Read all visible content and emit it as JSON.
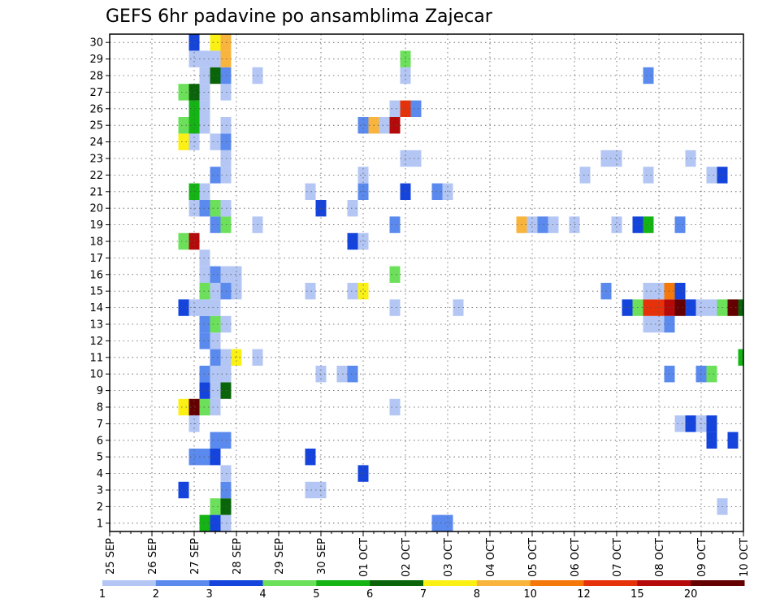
{
  "chart_data": {
    "type": "heatmap",
    "title": "GEFS 6hr padavine po ansamblima Zajecar",
    "xlabel": "",
    "ylabel": "",
    "x_tick_labels": [
      "25 SEP",
      "26 SEP",
      "27 SEP",
      "28 SEP",
      "29 SEP",
      "30 SEP",
      "01 OCT",
      "02 OCT",
      "03 OCT",
      "04 OCT",
      "05 OCT",
      "06 OCT",
      "07 OCT",
      "08 OCT",
      "09 OCT",
      "10 OCT"
    ],
    "y_tick_labels": [
      "1",
      "2",
      "3",
      "4",
      "5",
      "6",
      "7",
      "8",
      "9",
      "10",
      "11",
      "12",
      "13",
      "14",
      "15",
      "16",
      "17",
      "18",
      "19",
      "20",
      "21",
      "22",
      "23",
      "24",
      "25",
      "26",
      "27",
      "28",
      "29",
      "30"
    ],
    "grid": true,
    "legend": "colorbar at bottom",
    "colorbar_labels": [
      "1",
      "2",
      "3",
      "4",
      "5",
      "6",
      "7",
      "8",
      "10",
      "12",
      "15",
      "20"
    ],
    "colorbar_colors": [
      "#b4c6f4",
      "#5b8aee",
      "#1444dc",
      "#6ce05a",
      "#14b414",
      "#0a640a",
      "#faf014",
      "#f8b43c",
      "#f5780a",
      "#e6320a",
      "#b40a0a",
      "#640000"
    ],
    "time_steps": 61,
    "members": 30,
    "cells": [
      [
        1,
        9,
        4
      ],
      [
        1,
        10,
        2
      ],
      [
        1,
        11,
        0
      ],
      [
        1,
        31,
        1
      ],
      [
        1,
        32,
        1
      ],
      [
        2,
        10,
        3
      ],
      [
        2,
        11,
        5
      ],
      [
        2,
        58,
        0
      ],
      [
        3,
        7,
        2
      ],
      [
        3,
        11,
        1
      ],
      [
        3,
        19,
        0
      ],
      [
        3,
        20,
        0
      ],
      [
        4,
        11,
        0
      ],
      [
        4,
        24,
        2
      ],
      [
        5,
        8,
        1
      ],
      [
        5,
        9,
        1
      ],
      [
        5,
        10,
        2
      ],
      [
        5,
        19,
        2
      ],
      [
        6,
        10,
        1
      ],
      [
        6,
        11,
        1
      ],
      [
        6,
        57,
        2
      ],
      [
        6,
        59,
        2
      ],
      [
        7,
        8,
        0
      ],
      [
        7,
        54,
        0
      ],
      [
        7,
        55,
        2
      ],
      [
        7,
        56,
        0
      ],
      [
        7,
        57,
        2
      ],
      [
        8,
        7,
        6
      ],
      [
        8,
        8,
        11
      ],
      [
        8,
        9,
        3
      ],
      [
        8,
        10,
        0
      ],
      [
        8,
        27,
        0
      ],
      [
        9,
        9,
        2
      ],
      [
        9,
        10,
        0
      ],
      [
        9,
        11,
        5
      ],
      [
        10,
        9,
        1
      ],
      [
        10,
        10,
        0
      ],
      [
        10,
        11,
        0
      ],
      [
        10,
        20,
        0
      ],
      [
        10,
        22,
        0
      ],
      [
        10,
        23,
        1
      ],
      [
        10,
        53,
        1
      ],
      [
        10,
        56,
        1
      ],
      [
        10,
        57,
        3
      ],
      [
        11,
        10,
        1
      ],
      [
        11,
        11,
        0
      ],
      [
        11,
        12,
        6
      ],
      [
        11,
        14,
        0
      ],
      [
        11,
        60,
        4
      ],
      [
        12,
        9,
        1
      ],
      [
        12,
        10,
        0
      ],
      [
        13,
        9,
        1
      ],
      [
        13,
        10,
        3
      ],
      [
        13,
        11,
        0
      ],
      [
        13,
        51,
        0
      ],
      [
        13,
        52,
        0
      ],
      [
        13,
        53,
        1
      ],
      [
        14,
        7,
        2
      ],
      [
        14,
        8,
        0
      ],
      [
        14,
        9,
        0
      ],
      [
        14,
        10,
        0
      ],
      [
        14,
        27,
        0
      ],
      [
        14,
        33,
        0
      ],
      [
        14,
        49,
        2
      ],
      [
        14,
        50,
        3
      ],
      [
        14,
        51,
        9
      ],
      [
        14,
        52,
        9
      ],
      [
        14,
        53,
        10
      ],
      [
        14,
        54,
        11
      ],
      [
        14,
        55,
        2
      ],
      [
        14,
        56,
        0
      ],
      [
        14,
        57,
        0
      ],
      [
        14,
        58,
        3
      ],
      [
        14,
        59,
        11
      ],
      [
        14,
        60,
        5
      ],
      [
        15,
        9,
        3
      ],
      [
        15,
        10,
        0
      ],
      [
        15,
        11,
        1
      ],
      [
        15,
        12,
        0
      ],
      [
        15,
        19,
        0
      ],
      [
        15,
        23,
        0
      ],
      [
        15,
        24,
        6
      ],
      [
        15,
        47,
        1
      ],
      [
        15,
        51,
        0
      ],
      [
        15,
        52,
        0
      ],
      [
        15,
        53,
        8
      ],
      [
        15,
        54,
        2
      ],
      [
        16,
        9,
        0
      ],
      [
        16,
        10,
        1
      ],
      [
        16,
        11,
        0
      ],
      [
        16,
        12,
        0
      ],
      [
        16,
        27,
        3
      ],
      [
        17,
        9,
        0
      ],
      [
        18,
        7,
        3
      ],
      [
        18,
        8,
        10
      ],
      [
        18,
        23,
        2
      ],
      [
        18,
        24,
        0
      ],
      [
        19,
        10,
        1
      ],
      [
        19,
        11,
        3
      ],
      [
        19,
        14,
        0
      ],
      [
        19,
        27,
        1
      ],
      [
        19,
        39,
        7
      ],
      [
        19,
        40,
        0
      ],
      [
        19,
        41,
        1
      ],
      [
        19,
        42,
        0
      ],
      [
        19,
        44,
        0
      ],
      [
        19,
        48,
        0
      ],
      [
        19,
        50,
        2
      ],
      [
        19,
        51,
        4
      ],
      [
        19,
        54,
        1
      ],
      [
        20,
        8,
        0
      ],
      [
        20,
        9,
        1
      ],
      [
        20,
        10,
        3
      ],
      [
        20,
        11,
        0
      ],
      [
        20,
        20,
        2
      ],
      [
        20,
        23,
        0
      ],
      [
        21,
        8,
        4
      ],
      [
        21,
        9,
        0
      ],
      [
        21,
        19,
        0
      ],
      [
        21,
        24,
        1
      ],
      [
        21,
        28,
        2
      ],
      [
        21,
        31,
        1
      ],
      [
        21,
        32,
        0
      ],
      [
        22,
        10,
        1
      ],
      [
        22,
        11,
        0
      ],
      [
        22,
        24,
        0
      ],
      [
        22,
        45,
        0
      ],
      [
        22,
        51,
        0
      ],
      [
        22,
        57,
        0
      ],
      [
        22,
        58,
        2
      ],
      [
        23,
        11,
        0
      ],
      [
        23,
        28,
        0
      ],
      [
        23,
        29,
        0
      ],
      [
        23,
        47,
        0
      ],
      [
        23,
        48,
        0
      ],
      [
        23,
        55,
        0
      ],
      [
        24,
        7,
        6
      ],
      [
        24,
        8,
        0
      ],
      [
        24,
        10,
        0
      ],
      [
        24,
        11,
        1
      ],
      [
        25,
        7,
        3
      ],
      [
        25,
        8,
        4
      ],
      [
        25,
        9,
        0
      ],
      [
        25,
        11,
        0
      ],
      [
        25,
        24,
        1
      ],
      [
        25,
        25,
        7
      ],
      [
        25,
        26,
        0
      ],
      [
        25,
        27,
        10
      ],
      [
        26,
        8,
        4
      ],
      [
        26,
        9,
        0
      ],
      [
        26,
        27,
        0
      ],
      [
        26,
        28,
        9
      ],
      [
        26,
        29,
        1
      ],
      [
        27,
        7,
        3
      ],
      [
        27,
        8,
        5
      ],
      [
        27,
        9,
        0
      ],
      [
        27,
        11,
        0
      ],
      [
        28,
        9,
        0
      ],
      [
        28,
        10,
        5
      ],
      [
        28,
        11,
        1
      ],
      [
        28,
        14,
        0
      ],
      [
        28,
        28,
        0
      ],
      [
        28,
        51,
        1
      ],
      [
        29,
        8,
        0
      ],
      [
        29,
        9,
        0
      ],
      [
        29,
        10,
        0
      ],
      [
        29,
        11,
        7
      ],
      [
        29,
        28,
        3
      ],
      [
        30,
        8,
        2
      ],
      [
        30,
        10,
        6
      ],
      [
        30,
        11,
        7
      ]
    ]
  }
}
